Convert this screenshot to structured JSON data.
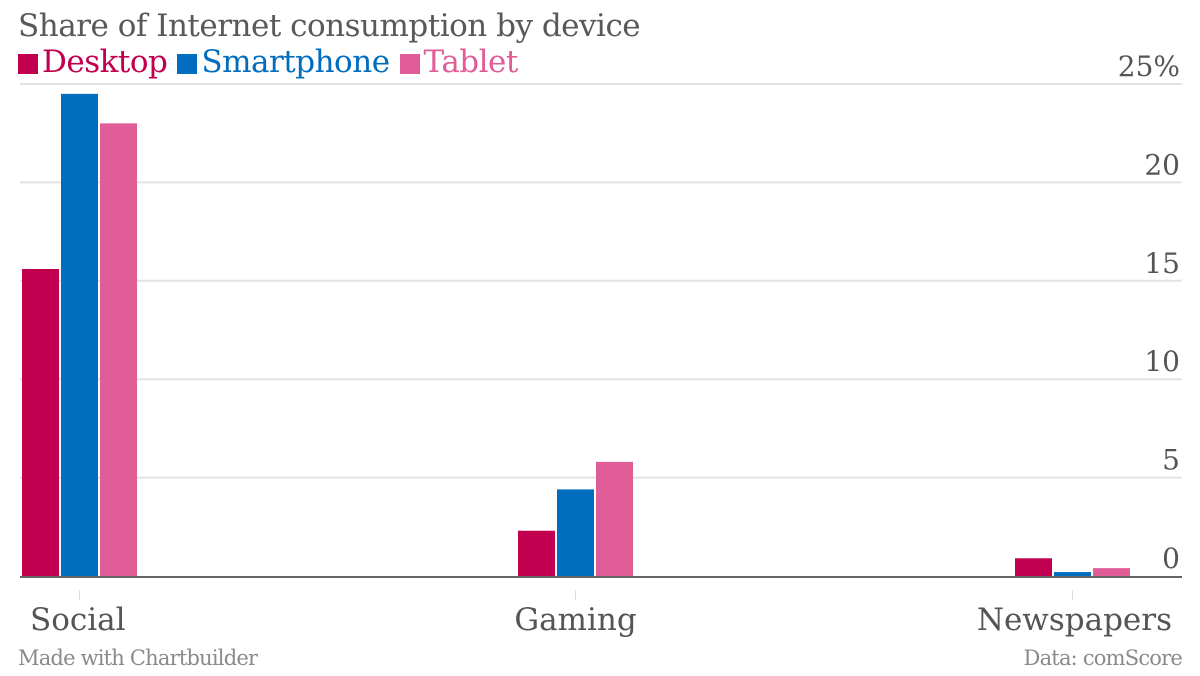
{
  "chart_data": {
    "type": "bar",
    "title": "Share of Internet consumption by device",
    "xlabel": "",
    "ylabel": "",
    "categories": [
      "Social",
      "Gaming",
      "Newspapers"
    ],
    "series": [
      {
        "name": "Desktop",
        "color": "#c0004e",
        "values": [
          15.6,
          2.3,
          0.9
        ]
      },
      {
        "name": "Smartphone",
        "color": "#006dbf",
        "values": [
          24.5,
          4.4,
          0.2
        ]
      },
      {
        "name": "Tablet",
        "color": "#e15d98",
        "values": [
          23.0,
          5.8,
          0.4
        ]
      }
    ],
    "ylim": [
      0,
      25
    ],
    "yticks": [
      0,
      5,
      10,
      15,
      20,
      25
    ],
    "ytick_labels": [
      "0",
      "5",
      "10",
      "15",
      "20",
      "25%"
    ],
    "y_axis_side": "right",
    "grid": true,
    "legend_position": "top-left"
  },
  "footer": {
    "credit": "Made with Chartbuilder",
    "source": "Data: comScore"
  }
}
